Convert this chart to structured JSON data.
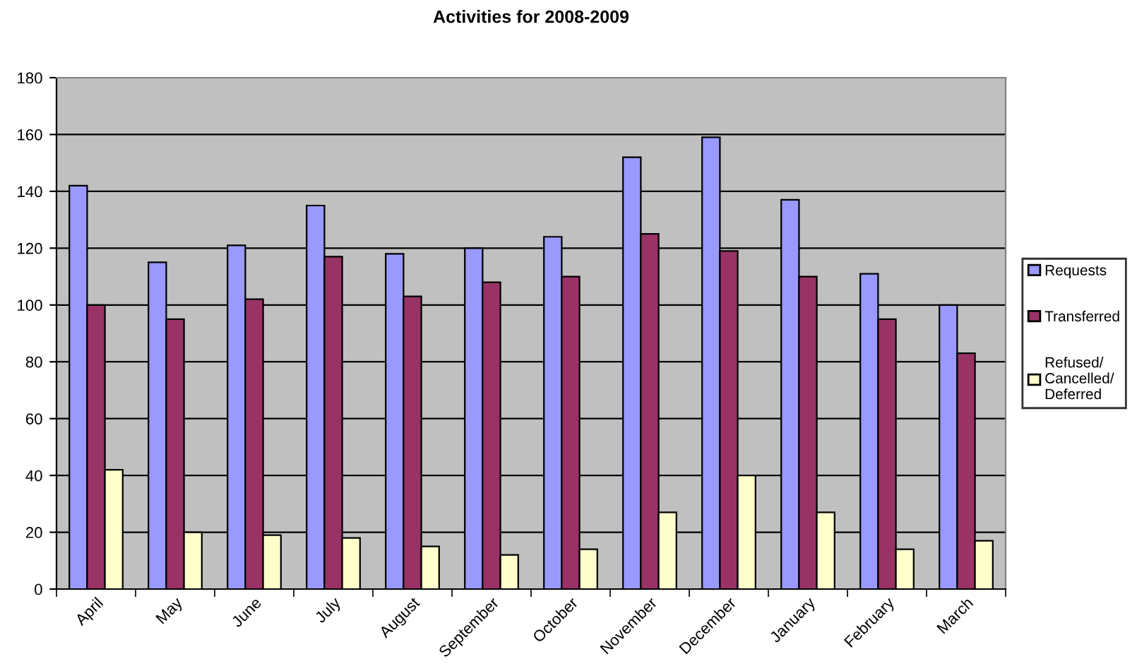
{
  "chart_data": {
    "type": "bar",
    "title": "Activities for 2008-2009",
    "categories": [
      "April",
      "May",
      "June",
      "July",
      "August",
      "September",
      "October",
      "November",
      "December",
      "January",
      "February",
      "March"
    ],
    "series": [
      {
        "name": "Requests",
        "color": "#9999ff",
        "values": [
          142,
          115,
          121,
          135,
          118,
          120,
          124,
          152,
          159,
          137,
          111,
          100
        ]
      },
      {
        "name": "Transferred",
        "color": "#993366",
        "values": [
          100,
          95,
          102,
          117,
          103,
          108,
          110,
          125,
          119,
          110,
          95,
          83
        ]
      },
      {
        "name": "Refused/\nCancelled/\nDeferred",
        "color": "#ffffcc",
        "values": [
          42,
          20,
          19,
          18,
          15,
          12,
          14,
          27,
          40,
          27,
          14,
          17
        ]
      }
    ],
    "ylim": [
      0,
      180
    ],
    "yticks": [
      0,
      20,
      40,
      60,
      80,
      100,
      120,
      140,
      160,
      180
    ],
    "grid": "y",
    "legend": "right"
  }
}
